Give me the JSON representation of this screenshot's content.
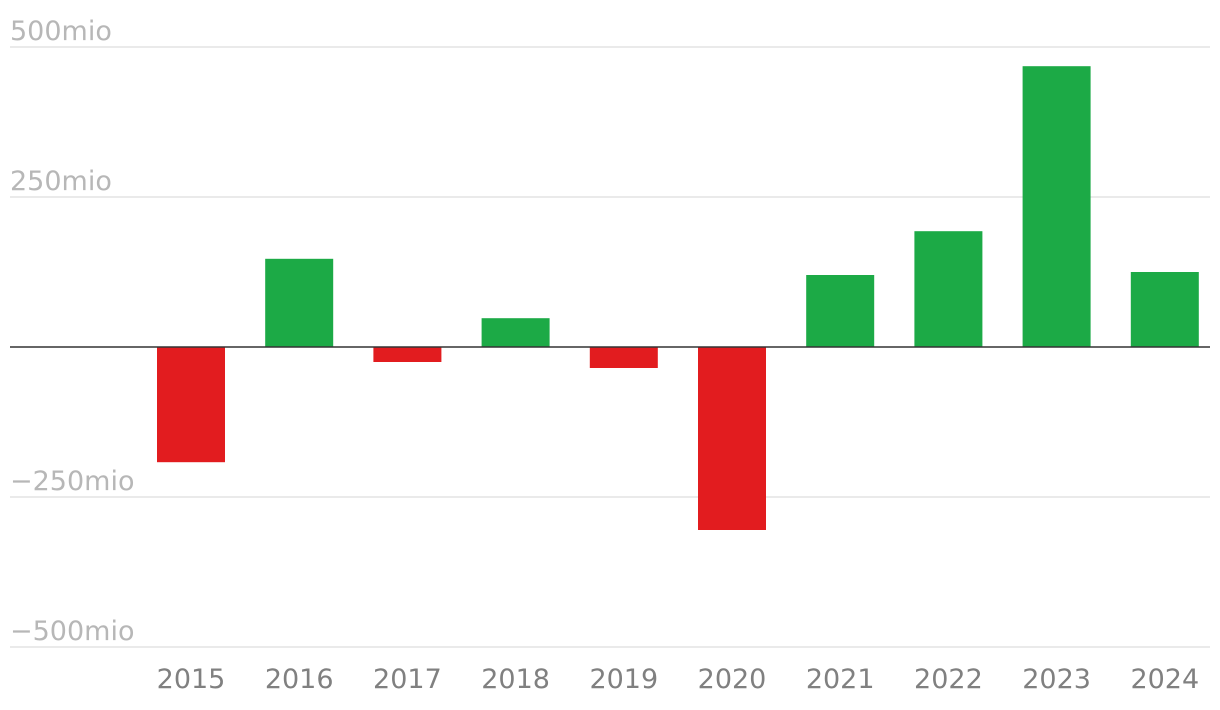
{
  "colors": {
    "positive": "#1caa46",
    "negative": "#e21c1f",
    "grid": "#e3e3e3",
    "zero_line": "#333333",
    "y_tick_text": "#b7b7b7",
    "x_tick_text": "#808080"
  },
  "chart_data": {
    "type": "bar",
    "title": "",
    "xlabel": "",
    "ylabel": "",
    "categories": [
      "2015",
      "2016",
      "2017",
      "2018",
      "2019",
      "2020",
      "2021",
      "2022",
      "2023",
      "2024"
    ],
    "values": [
      -192,
      147,
      -25,
      48,
      -35,
      -305,
      120,
      193,
      468,
      125
    ],
    "ylim": [
      -500,
      500
    ],
    "y_ticks": [
      500,
      250,
      -250,
      -500
    ],
    "y_tick_labels": [
      "500mio",
      "250mio",
      "−250mio",
      "−500mio"
    ],
    "grid": true,
    "legend": "none",
    "bar_color_rule": "positive values green, negative values red"
  }
}
